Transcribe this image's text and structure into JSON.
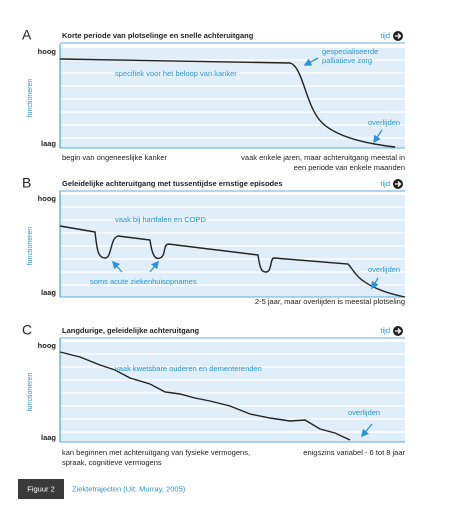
{
  "panels": [
    {
      "letter": "A",
      "title": "Korte periode van plotselinge en snelle achteruitgang",
      "time_label": "tijd",
      "y_high": "hoog",
      "y_low": "laag",
      "y_axis": "functioneren",
      "annotations": [
        {
          "lines": [
            "specifiek voor het beloop van kanker"
          ]
        },
        {
          "lines": [
            "gespecialiseerde",
            "palliatieve zorg"
          ]
        },
        {
          "lines": [
            "overlijden"
          ]
        }
      ],
      "captions": [
        {
          "lines": [
            "begin van ongeneeslijke kanker"
          ]
        },
        {
          "lines": [
            "vaak enkele jaren, maar achteruitgang meestal in",
            "een periode van enkele maanden"
          ]
        }
      ]
    },
    {
      "letter": "B",
      "title": "Geleidelijke achteruitgang met tussentijdse ernstige episodes",
      "time_label": "tijd",
      "y_high": "hoog",
      "y_low": "laag",
      "y_axis": "functioneren",
      "annotations": [
        {
          "lines": [
            "vaak bij hartfalen en COPD"
          ]
        },
        {
          "lines": [
            "soms acute ziekenhuisopnames"
          ]
        },
        {
          "lines": [
            "overlijden"
          ]
        }
      ],
      "captions": [
        {
          "lines": [
            "2-5 jaar, maar overlijden is meestal plotseling"
          ]
        }
      ]
    },
    {
      "letter": "C",
      "title": "Langdurige, geleidelijke achteruitgang",
      "time_label": "tijd",
      "y_high": "hoog",
      "y_low": "laag",
      "y_axis": "functioneren",
      "annotations": [
        {
          "lines": [
            "vaak kwetsbare ouderen en dementerenden"
          ]
        },
        {
          "lines": [
            "overlijden"
          ]
        }
      ],
      "captions": [
        {
          "lines": [
            "kan beginnen met achteruitgang van fysieke vermogens,",
            "spraak, cognitieve vermogens"
          ]
        },
        {
          "lines": [
            "enigszins variabel - 6 tot 8 jaar"
          ]
        }
      ]
    }
  ],
  "figure": {
    "label": "Figuur 2",
    "caption": "Ziektetrajecten (Uit: Murray, 2005)"
  }
}
